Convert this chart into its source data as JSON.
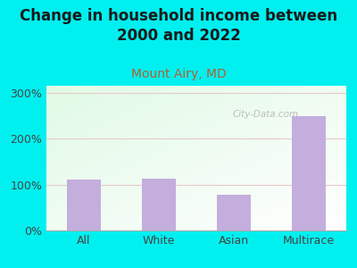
{
  "title": "Change in household income between\n2000 and 2022",
  "subtitle": "Mount Airy, MD",
  "categories": [
    "All",
    "White",
    "Asian",
    "Multirace"
  ],
  "values": [
    110,
    112,
    78,
    248
  ],
  "bar_color": "#c4aedd",
  "background_color": "#00f0f0",
  "plot_bg_color": "#f0faee",
  "title_fontsize": 12,
  "title_color": "#1a1a1a",
  "subtitle_fontsize": 10,
  "subtitle_color": "#b06030",
  "yticks": [
    0,
    100,
    200,
    300
  ],
  "ylim": [
    0,
    315
  ],
  "watermark": "City-Data.com",
  "grid_color": "#e8c8c8",
  "tick_label_color": "#444444",
  "tick_fontsize": 9
}
